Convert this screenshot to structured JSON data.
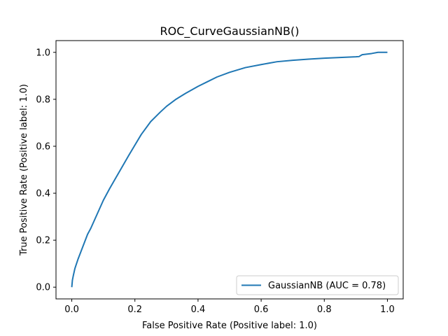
{
  "chart_data": {
    "type": "line",
    "title": "ROC_CurveGaussianNB()",
    "xlabel": "False Positive Rate (Positive label: 1.0)",
    "ylabel": "True Positive Rate (Positive label: 1.0)",
    "xlim": [
      -0.05,
      1.05
    ],
    "ylim": [
      -0.05,
      1.05
    ],
    "xticks": [
      0.0,
      0.2,
      0.4,
      0.6,
      0.8,
      1.0
    ],
    "yticks": [
      0.0,
      0.2,
      0.4,
      0.6,
      0.8,
      1.0
    ],
    "xtick_labels": [
      "0.0",
      "0.2",
      "0.4",
      "0.6",
      "0.8",
      "1.0"
    ],
    "ytick_labels": [
      "0.0",
      "0.2",
      "0.4",
      "0.6",
      "0.8",
      "1.0"
    ],
    "grid": false,
    "legend_position": "lower-right",
    "series": [
      {
        "name": "GaussianNB (AUC = 0.78)",
        "color": "#1f77b4",
        "x": [
          0.0,
          0.002,
          0.005,
          0.01,
          0.02,
          0.03,
          0.04,
          0.05,
          0.06,
          0.08,
          0.1,
          0.12,
          0.15,
          0.18,
          0.2,
          0.22,
          0.25,
          0.28,
          0.3,
          0.33,
          0.36,
          0.4,
          0.43,
          0.46,
          0.5,
          0.55,
          0.6,
          0.65,
          0.7,
          0.75,
          0.8,
          0.85,
          0.9,
          0.91,
          0.92,
          0.95,
          0.97,
          1.0
        ],
        "y": [
          0.0,
          0.03,
          0.05,
          0.08,
          0.12,
          0.155,
          0.19,
          0.225,
          0.25,
          0.31,
          0.37,
          0.42,
          0.49,
          0.56,
          0.605,
          0.65,
          0.705,
          0.745,
          0.77,
          0.8,
          0.825,
          0.855,
          0.875,
          0.895,
          0.915,
          0.935,
          0.948,
          0.96,
          0.966,
          0.971,
          0.975,
          0.978,
          0.981,
          0.982,
          0.99,
          0.995,
          1.0,
          1.0
        ]
      }
    ]
  }
}
